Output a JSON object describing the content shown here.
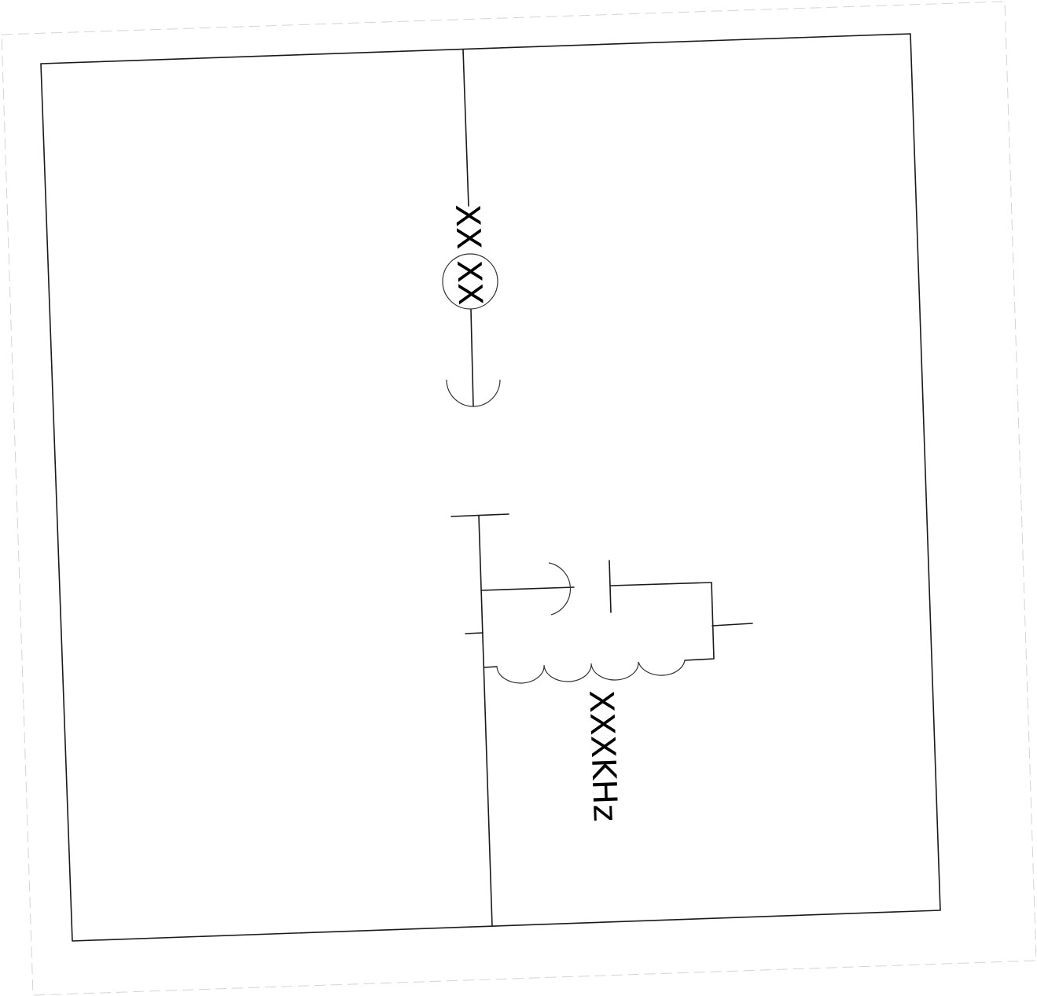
{
  "diagram": {
    "labels": {
      "station_id_top": "XX",
      "station_id_circle": "XX",
      "frequency": "XXXKHz"
    }
  }
}
